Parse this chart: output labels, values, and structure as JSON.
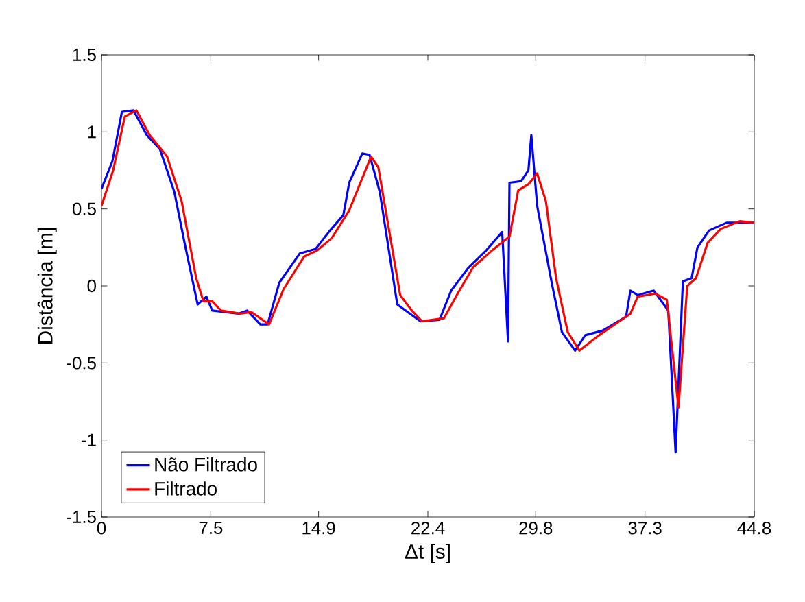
{
  "chart_data": {
    "type": "line",
    "xlabel": "Δt [s]",
    "ylabel": "Distância [m]",
    "xlim": [
      0,
      44.8
    ],
    "ylim": [
      -1.5,
      1.5
    ],
    "xticks": [
      0,
      7.5,
      14.9,
      22.4,
      29.8,
      37.3,
      44.8
    ],
    "yticks": [
      -1.5,
      -1,
      -0.5,
      0,
      0.5,
      1,
      1.5
    ],
    "legend": "bottom left",
    "grid": false,
    "line_style": "solid",
    "marker": "none",
    "series": [
      {
        "name": "Não Filtrado",
        "color": "#0000ff",
        "x": [
          0,
          0.75,
          1.4,
          2.2,
          3.1,
          4.0,
          5.0,
          5.7,
          6.6,
          7.2,
          7.6,
          9.4,
          10.0,
          10.9,
          11.4,
          12.2,
          13.6,
          14.7,
          15.6,
          16.6,
          17.0,
          17.9,
          18.4,
          19.1,
          20.3,
          21.9,
          23.2,
          24.0,
          25.2,
          26.4,
          27.5,
          27.9,
          28.0,
          28.8,
          29.3,
          29.5,
          29.9,
          30.9,
          31.6,
          32.5,
          33.2,
          34.4,
          36.0,
          36.3,
          36.8,
          37.9,
          38.9,
          39.4,
          39.9,
          40.5,
          40.9,
          41.7,
          42.9,
          43.6,
          44.8
        ],
        "values": [
          0.63,
          0.81,
          1.13,
          1.14,
          0.98,
          0.89,
          0.61,
          0.28,
          -0.12,
          -0.07,
          -0.16,
          -0.18,
          -0.16,
          -0.25,
          -0.25,
          0.02,
          0.21,
          0.24,
          0.35,
          0.46,
          0.67,
          0.86,
          0.85,
          0.61,
          -0.12,
          -0.23,
          -0.22,
          -0.03,
          0.12,
          0.23,
          0.35,
          -0.36,
          0.67,
          0.68,
          0.75,
          0.98,
          0.52,
          0.02,
          -0.3,
          -0.42,
          -0.32,
          -0.29,
          -0.2,
          -0.03,
          -0.06,
          -0.03,
          -0.16,
          -1.08,
          0.03,
          0.05,
          0.25,
          0.36,
          0.41,
          0.41,
          0.41
        ]
      },
      {
        "name": "Filtrado",
        "color": "#ff0000",
        "x": [
          0,
          0.8,
          1.6,
          2.4,
          3.3,
          4.5,
          5.5,
          6.5,
          7.0,
          7.6,
          8.2,
          9.5,
          10.3,
          11.5,
          12.5,
          13.9,
          14.8,
          15.8,
          17.0,
          18.5,
          19.0,
          20.5,
          21.3,
          22.0,
          23.5,
          24.5,
          25.5,
          26.8,
          28.0,
          28.6,
          29.3,
          29.9,
          30.5,
          31.2,
          32.0,
          32.8,
          34.0,
          36.3,
          36.8,
          38.0,
          38.8,
          39.6,
          40.2,
          40.8,
          41.6,
          42.5,
          43.8,
          44.8
        ],
        "values": [
          0.52,
          0.75,
          1.1,
          1.14,
          0.98,
          0.84,
          0.55,
          0.05,
          -0.1,
          -0.1,
          -0.16,
          -0.18,
          -0.17,
          -0.25,
          -0.02,
          0.19,
          0.23,
          0.31,
          0.49,
          0.84,
          0.77,
          -0.06,
          -0.16,
          -0.23,
          -0.21,
          -0.04,
          0.12,
          0.23,
          0.32,
          0.62,
          0.66,
          0.73,
          0.55,
          0.05,
          -0.3,
          -0.42,
          -0.33,
          -0.18,
          -0.07,
          -0.05,
          -0.09,
          -0.79,
          0.0,
          0.05,
          0.28,
          0.37,
          0.42,
          0.41
        ]
      }
    ]
  }
}
